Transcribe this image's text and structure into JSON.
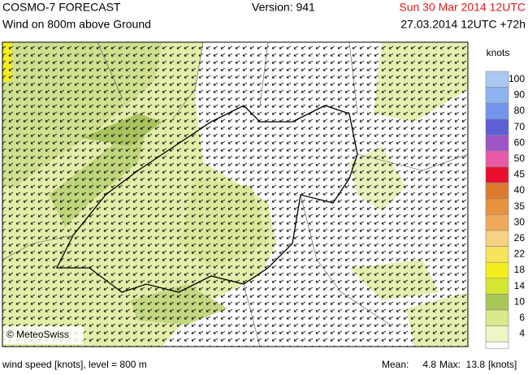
{
  "header": {
    "title": "COSMO-7 FORECAST",
    "subtitle": "Wind on 800m above Ground",
    "version": "Version: 941",
    "valid_time": "Sun 30 Mar 2014 12UTC",
    "run_time": "27.03.2014 12UTC +72h"
  },
  "map": {
    "copyright": "© MeteoSwiss"
  },
  "legend": {
    "unit": "knots",
    "levels": [
      {
        "label": "100",
        "color": "#a9c9f2"
      },
      {
        "label": "90",
        "color": "#8fb3ee"
      },
      {
        "label": "80",
        "color": "#7495ee"
      },
      {
        "label": "70",
        "color": "#5c5fd6"
      },
      {
        "label": "60",
        "color": "#9e55c8"
      },
      {
        "label": "50",
        "color": "#e85aa6"
      },
      {
        "label": "45",
        "color": "#e8102e"
      },
      {
        "label": "40",
        "color": "#de7a30"
      },
      {
        "label": "35",
        "color": "#e8923e"
      },
      {
        "label": "30",
        "color": "#f0aa5a"
      },
      {
        "label": "26",
        "color": "#f7d282"
      },
      {
        "label": "22",
        "color": "#f8e35c"
      },
      {
        "label": "18",
        "color": "#f5ee1e"
      },
      {
        "label": "14",
        "color": "#d6e632"
      },
      {
        "label": "10",
        "color": "#a9c756"
      },
      {
        "label": "6",
        "color": "#dbe88c"
      },
      {
        "label": "4",
        "color": "#f0f5c6"
      }
    ]
  },
  "footer": {
    "description": "wind speed [knots], level = 800 m",
    "mean_label": "Mean:",
    "mean": 4.8,
    "max_label": "Max:",
    "max": 13.8,
    "unit": "[knots]"
  }
}
